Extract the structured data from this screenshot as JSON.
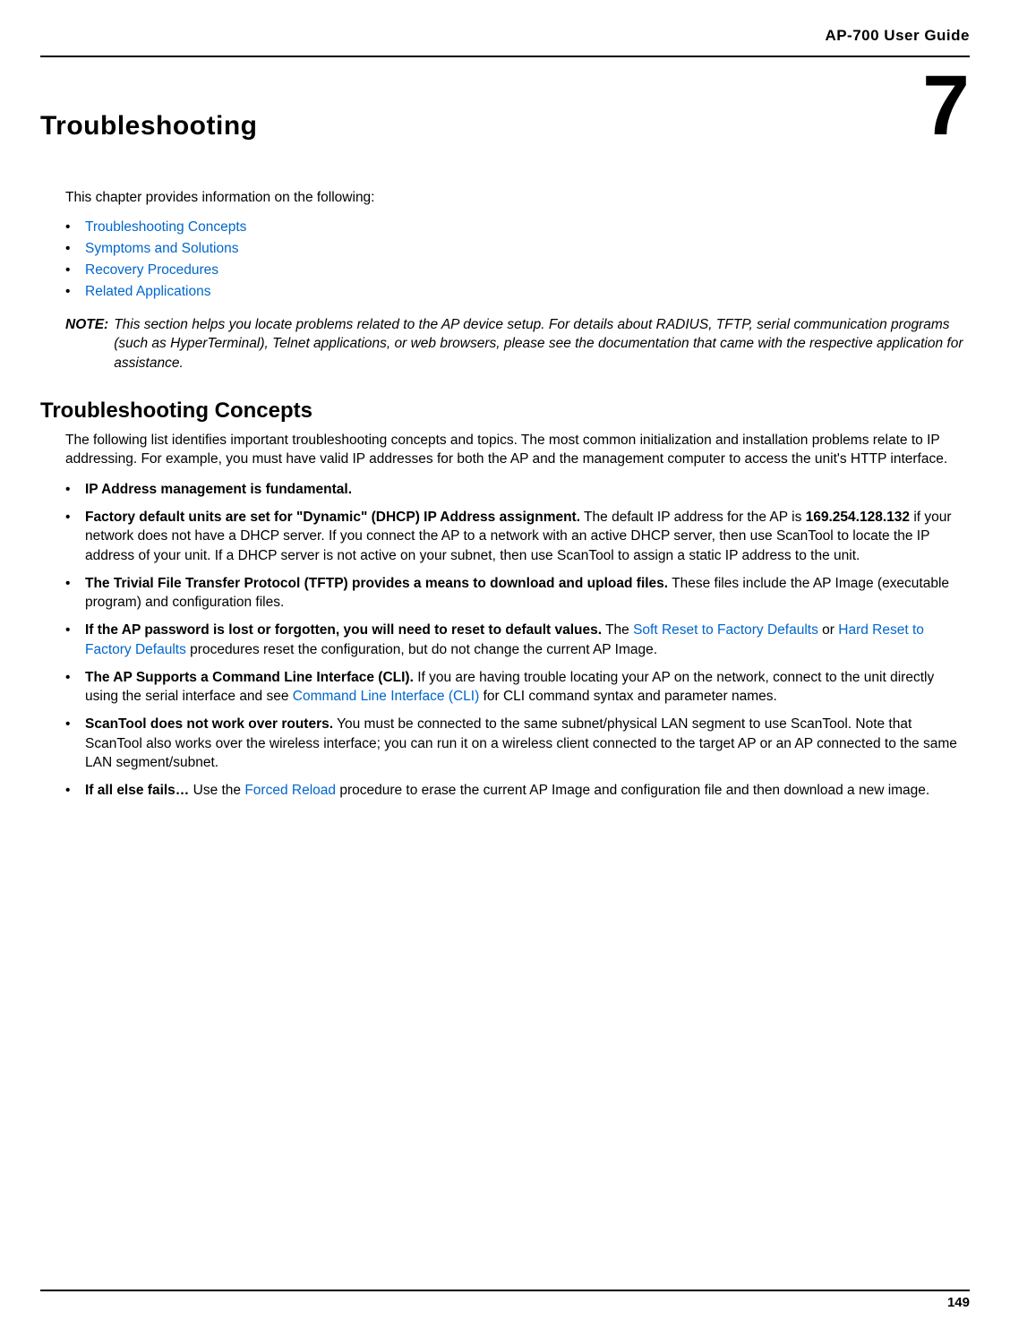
{
  "header": {
    "guide_title": "AP-700 User Guide"
  },
  "chapter": {
    "title": "Troubleshooting",
    "number": "7"
  },
  "intro_text": "This chapter provides information on the following:",
  "toc": [
    "Troubleshooting Concepts",
    "Symptoms and Solutions",
    "Recovery Procedures",
    "Related Applications"
  ],
  "note": {
    "label": "NOTE:",
    "text": "This section helps you locate problems related to the AP device setup. For details about RADIUS, TFTP, serial communication programs (such as HyperTerminal), Telnet applications, or web browsers, please see the documentation that came with the respective application for assistance."
  },
  "section": {
    "heading": "Troubleshooting Concepts",
    "para": "The following list identifies important troubleshooting concepts and topics. The most common initialization and installation problems relate to IP addressing. For example, you must have valid IP addresses for both the AP and the management computer to access the unit's HTTP interface."
  },
  "bullets": {
    "b1": {
      "bold": "IP Address management is fundamental."
    },
    "b2": {
      "bold": "Factory default units are set for \"Dynamic\" (DHCP) IP Address assignment.",
      "text1": " The default IP address for the AP is ",
      "bold2": "169.254.128.132",
      "text2": " if your network does not have a DHCP server. If you connect the AP to a network with an active DHCP server, then use ScanTool to locate the IP address of your unit. If a DHCP server is not active on your subnet, then use ScanTool to assign a static IP address to the unit."
    },
    "b3": {
      "bold": "The Trivial File Transfer Protocol (TFTP) provides a means to download and upload files.",
      "text": " These files include the AP Image (executable program) and configuration files."
    },
    "b4": {
      "bold": "If the AP password is lost or forgotten, you will need to reset to default values.",
      "text1": " The ",
      "link1": "Soft Reset to Factory Defaults",
      "text2": " or ",
      "link2": "Hard Reset to Factory Defaults",
      "text3": " procedures reset the configuration, but do not change the current AP Image."
    },
    "b5": {
      "bold": "The AP Supports a Command Line Interface (CLI).",
      "text1": " If you are having trouble locating your AP on the network, connect to the unit directly using the serial interface and see ",
      "link": "Command Line Interface (CLI)",
      "text2": " for CLI command syntax and parameter names."
    },
    "b6": {
      "bold": "ScanTool does not work over routers.",
      "text": " You must be connected to the same subnet/physical LAN segment to use ScanTool. Note that ScanTool also works over the wireless interface; you can run it on a wireless client connected to the target AP or an AP connected to the same LAN segment/subnet."
    },
    "b7": {
      "bold": "If all else fails…",
      "text1": " Use the ",
      "link": "Forced Reload",
      "text2": " procedure to erase the current AP Image and configuration file and then download a new image."
    }
  },
  "footer": {
    "page_number": "149"
  },
  "colors": {
    "link": "#0066cc",
    "text": "#000000",
    "background": "#ffffff"
  }
}
